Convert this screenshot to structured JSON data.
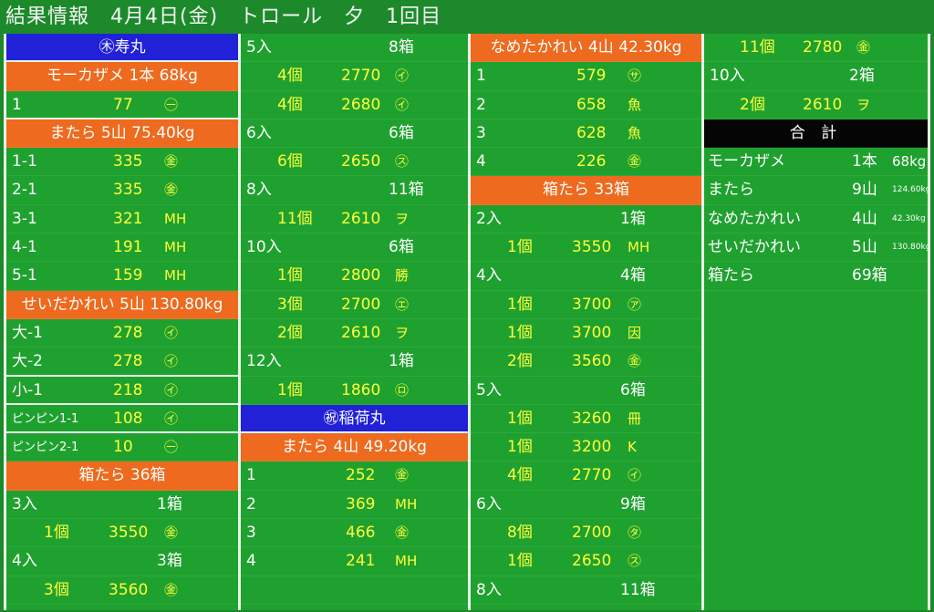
{
  "title": "結果情報　4月4日(金)　トロール　夕　1回目",
  "col1": [
    {
      "kind": "blue",
      "text": "㊍寿丸"
    },
    {
      "kind": "orange",
      "text": "モーカザメ 1本 68kg"
    },
    {
      "kind": "item",
      "id": "1",
      "value": "77",
      "mark": "㊀",
      "sep": true
    },
    {
      "kind": "orange",
      "text": "またら 5山 75.40kg"
    },
    {
      "kind": "item",
      "id": "1-1",
      "value": "335",
      "mark": "㊎"
    },
    {
      "kind": "item",
      "id": "2-1",
      "value": "335",
      "mark": "㊎"
    },
    {
      "kind": "item",
      "id": "3-1",
      "value": "321",
      "mark": "MH"
    },
    {
      "kind": "item",
      "id": "4-1",
      "value": "191",
      "mark": "MH"
    },
    {
      "kind": "item",
      "id": "5-1",
      "value": "159",
      "mark": "MH"
    },
    {
      "kind": "orange",
      "text": "せいだかれい 5山 130.80kg"
    },
    {
      "kind": "item",
      "id": "大-1",
      "value": "278",
      "mark": "㋑"
    },
    {
      "kind": "item",
      "id": "大-2",
      "value": "278",
      "mark": "㋑",
      "sep": true
    },
    {
      "kind": "item",
      "id": "小-1",
      "value": "218",
      "mark": "㋑",
      "sep": true
    },
    {
      "kind": "item",
      "id": "ピンピン1-1",
      "value": "108",
      "mark": "㋑",
      "small": true,
      "sep": true
    },
    {
      "kind": "item",
      "id": "ピンピン2-1",
      "value": "10",
      "mark": "㊀",
      "small": true
    },
    {
      "kind": "orange",
      "text": "箱たら 36箱"
    },
    {
      "kind": "box",
      "label": "3入",
      "count": "1箱"
    },
    {
      "kind": "pc",
      "qty": "1個",
      "price": "3550",
      "mark": "㊎"
    },
    {
      "kind": "box",
      "label": "4入",
      "count": "3箱"
    },
    {
      "kind": "pc",
      "qty": "3個",
      "price": "3560",
      "mark": "㊎"
    }
  ],
  "col2": [
    {
      "kind": "box",
      "label": "5入",
      "count": "8箱"
    },
    {
      "kind": "pc",
      "qty": "4個",
      "price": "2770",
      "mark": "㋑"
    },
    {
      "kind": "pc",
      "qty": "4個",
      "price": "2680",
      "mark": "㋑"
    },
    {
      "kind": "box",
      "label": "6入",
      "count": "6箱"
    },
    {
      "kind": "pc",
      "qty": "6個",
      "price": "2650",
      "mark": "㋜"
    },
    {
      "kind": "box",
      "label": "8入",
      "count": "11箱"
    },
    {
      "kind": "pc",
      "qty": "11個",
      "price": "2610",
      "mark": "ヲ"
    },
    {
      "kind": "box",
      "label": "10入",
      "count": "6箱"
    },
    {
      "kind": "pc",
      "qty": "1個",
      "price": "2800",
      "mark": "勝"
    },
    {
      "kind": "pc",
      "qty": "3個",
      "price": "2700",
      "mark": "㋓"
    },
    {
      "kind": "pc",
      "qty": "2個",
      "price": "2610",
      "mark": "ヲ"
    },
    {
      "kind": "box",
      "label": "12入",
      "count": "1箱"
    },
    {
      "kind": "pc",
      "qty": "1個",
      "price": "1860",
      "mark": "㋺"
    },
    {
      "kind": "blue",
      "text": "㊗稲荷丸"
    },
    {
      "kind": "orange",
      "text": "またら 4山 49.20kg"
    },
    {
      "kind": "item",
      "id": "1",
      "value": "252",
      "mark": "㊎"
    },
    {
      "kind": "item",
      "id": "2",
      "value": "369",
      "mark": "MH"
    },
    {
      "kind": "item",
      "id": "3",
      "value": "466",
      "mark": "㊎"
    },
    {
      "kind": "item",
      "id": "4",
      "value": "241",
      "mark": "MH"
    },
    {
      "kind": "blank"
    }
  ],
  "col3": [
    {
      "kind": "orange",
      "text": "なめたかれい 4山 42.30kg"
    },
    {
      "kind": "item",
      "id": "1",
      "value": "579",
      "mark": "㋚"
    },
    {
      "kind": "item",
      "id": "2",
      "value": "658",
      "mark": "魚"
    },
    {
      "kind": "item",
      "id": "3",
      "value": "628",
      "mark": "魚"
    },
    {
      "kind": "item",
      "id": "4",
      "value": "226",
      "mark": "㊎"
    },
    {
      "kind": "orange",
      "text": "箱たら 33箱"
    },
    {
      "kind": "box",
      "label": "2入",
      "count": "1箱"
    },
    {
      "kind": "pc",
      "qty": "1個",
      "price": "3550",
      "mark": "MH"
    },
    {
      "kind": "box",
      "label": "4入",
      "count": "4箱"
    },
    {
      "kind": "pc",
      "qty": "1個",
      "price": "3700",
      "mark": "㋐"
    },
    {
      "kind": "pc",
      "qty": "1個",
      "price": "3700",
      "mark": "因"
    },
    {
      "kind": "pc",
      "qty": "2個",
      "price": "3560",
      "mark": "㊎"
    },
    {
      "kind": "box",
      "label": "5入",
      "count": "6箱"
    },
    {
      "kind": "pc",
      "qty": "1個",
      "price": "3260",
      "mark": "冊"
    },
    {
      "kind": "pc",
      "qty": "1個",
      "price": "3200",
      "mark": "K"
    },
    {
      "kind": "pc",
      "qty": "4個",
      "price": "2770",
      "mark": "㋑"
    },
    {
      "kind": "box",
      "label": "6入",
      "count": "9箱"
    },
    {
      "kind": "pc",
      "qty": "8個",
      "price": "2700",
      "mark": "㋟"
    },
    {
      "kind": "pc",
      "qty": "1個",
      "price": "2650",
      "mark": "㋜"
    },
    {
      "kind": "box",
      "label": "8入",
      "count": "11箱"
    }
  ],
  "col4": [
    {
      "kind": "pc",
      "qty": "11個",
      "price": "2780",
      "mark": "㊎"
    },
    {
      "kind": "box",
      "label": "10入",
      "count": "2箱"
    },
    {
      "kind": "pc",
      "qty": "2個",
      "price": "2610",
      "mark": "ヲ"
    },
    {
      "kind": "black",
      "text": "合 計"
    },
    {
      "kind": "total",
      "name": "モーカザメ",
      "qty": "1本",
      "kg": "68kg",
      "small": false
    },
    {
      "kind": "total",
      "name": "またら",
      "qty": "9山",
      "kg": "124.60kg",
      "small": true
    },
    {
      "kind": "total",
      "name": "なめたかれい",
      "qty": "4山",
      "kg": "42.30kg",
      "small": true
    },
    {
      "kind": "total",
      "name": "せいだかれい",
      "qty": "5山",
      "kg": "130.80kg",
      "small": true
    },
    {
      "kind": "total",
      "name": "箱たら",
      "qty": "69箱",
      "kg": "",
      "small": false
    }
  ]
}
